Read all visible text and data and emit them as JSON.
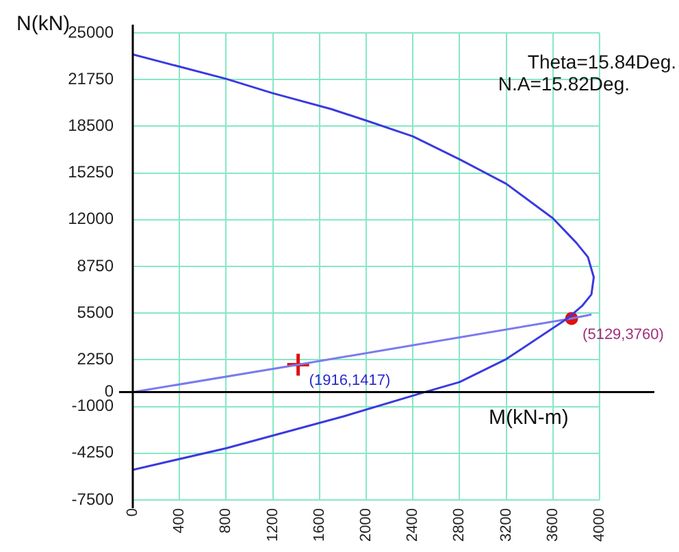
{
  "chart_data": {
    "type": "line",
    "xlabel": "M(kN-m)",
    "ylabel": "N(kN)",
    "xlim": [
      0,
      4000
    ],
    "xticks": [
      0,
      400,
      800,
      1200,
      1600,
      2000,
      2400,
      2800,
      3200,
      3600,
      4000
    ],
    "ylim": [
      -7500,
      25000
    ],
    "yticks": [
      25000,
      21750,
      18500,
      15250,
      12000,
      8750,
      5500,
      2250,
      0,
      -1000,
      -4250,
      -7500
    ],
    "grid": true,
    "legend": false,
    "ref_lines": [
      {
        "axis": "y",
        "value": 0,
        "color": "#000000"
      }
    ],
    "series": [
      {
        "color": "#3a3ae0",
        "marker": "none",
        "x": [
          0,
          800,
          1200,
          1700,
          2000,
          2400,
          2800,
          3200,
          3600,
          3800,
          3900,
          3950,
          3930,
          3850,
          3720,
          3200,
          2800,
          2500,
          1800,
          800,
          0
        ],
        "values": [
          23500,
          21800,
          20800,
          19700,
          18900,
          17800,
          16200,
          14500,
          12100,
          10400,
          9400,
          8000,
          6800,
          6000,
          5100,
          2300,
          700,
          0,
          -1700,
          -3900,
          -5400
        ]
      },
      {
        "color": "#7a7af0",
        "marker": "none",
        "x": [
          0,
          1417,
          3760,
          3930
        ],
        "values": [
          0,
          1916,
          5129,
          5400
        ]
      },
      {
        "type": "scatter",
        "color": "#e01010",
        "marker": "cross",
        "x": [
          1417
        ],
        "values": [
          1916
        ]
      },
      {
        "type": "scatter",
        "color": "#e01010",
        "marker": "circle",
        "x": [
          3760
        ],
        "values": [
          5129
        ]
      }
    ],
    "annotations": [
      "Theta=15.84Deg.",
      "N.A=15.82Deg.",
      {
        "text": "(1916,1417)",
        "x": 1417,
        "y": 1916
      },
      {
        "text": "(5129,3760)",
        "x": 3760,
        "y": 5129
      }
    ]
  }
}
